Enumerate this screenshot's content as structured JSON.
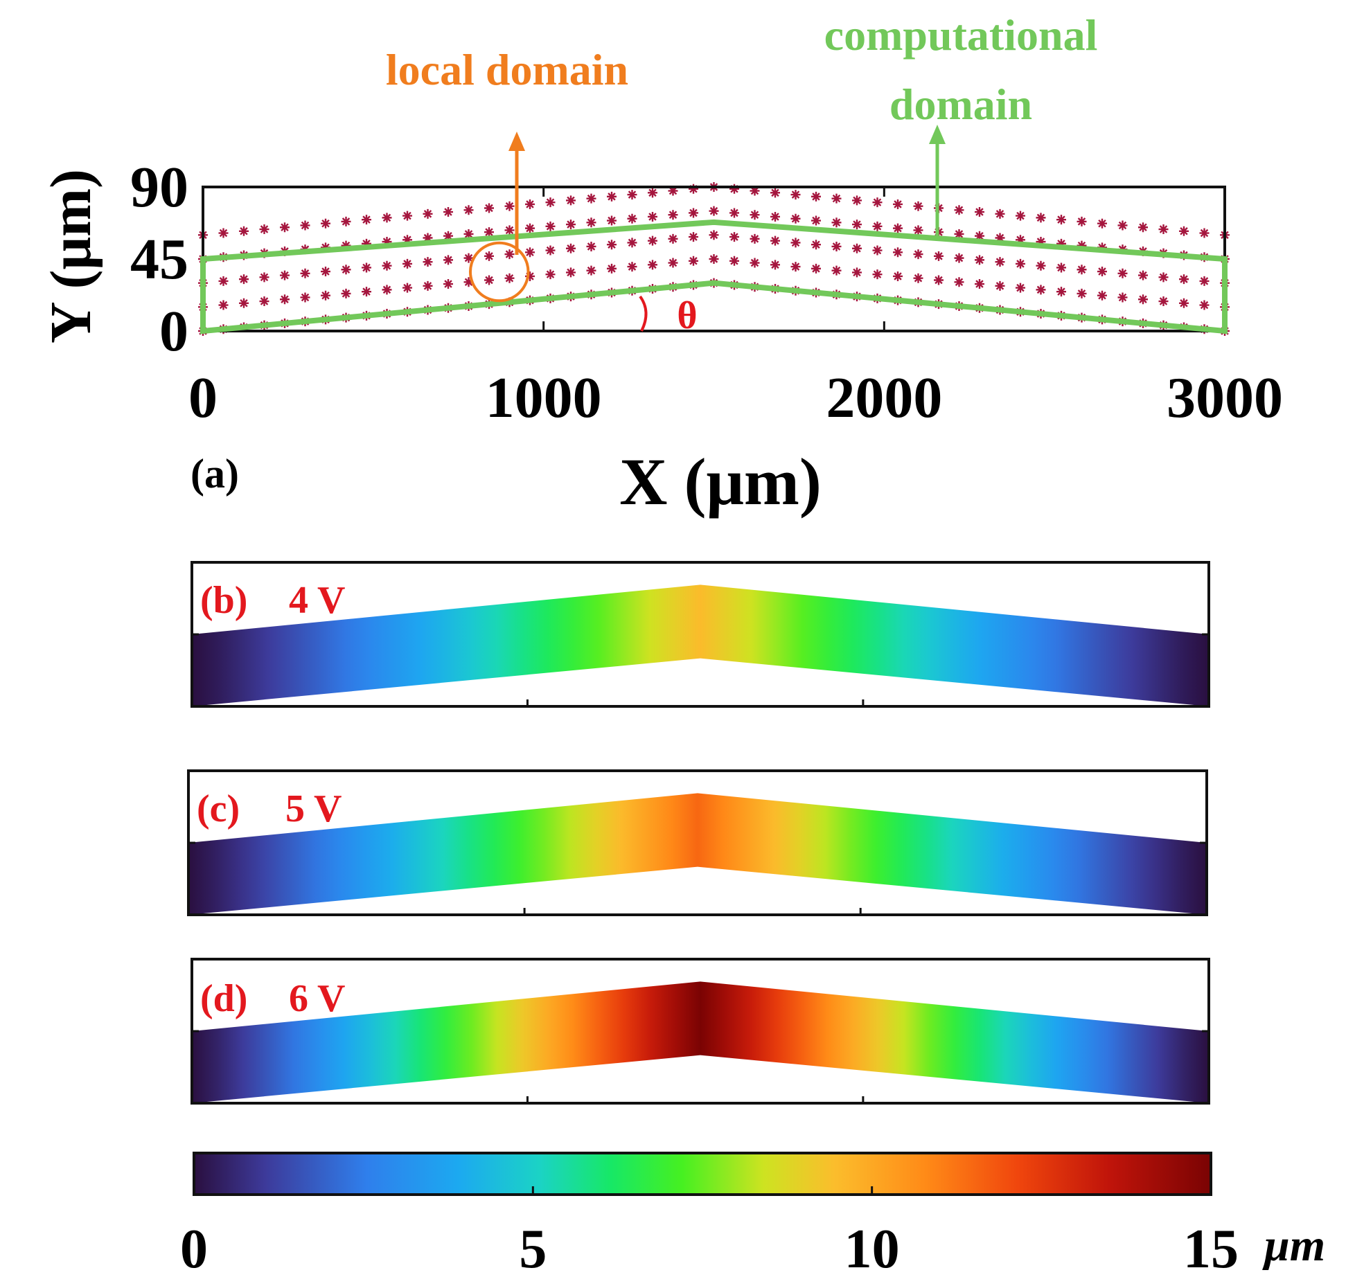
{
  "colors": {
    "accent_green": "#72c85a",
    "accent_orange": "#f07d1e",
    "label_red": "#e3181e",
    "star_color": "#a5163e",
    "axis_black": "#111111"
  },
  "chart_data": [
    {
      "panel": "(a)",
      "type": "scatter",
      "title": "",
      "xlabel": "X (μm)",
      "ylabel": "Y (μm)",
      "xlim": [
        0,
        3000
      ],
      "ylim": [
        0,
        90
      ],
      "xticks": [
        0,
        1000,
        2000,
        3000
      ],
      "yticks": [
        0,
        45,
        90
      ],
      "node_grid": {
        "x_start": 0,
        "x_end": 3000,
        "columns": 51,
        "rows_y_offset": [
          0,
          15,
          30,
          45,
          60
        ],
        "peak_x": 1500,
        "peak_rise": 30
      },
      "computational_domain": {
        "label": "computational domain",
        "label_lines": [
          "computational",
          "domain"
        ],
        "outline": [
          [
            0,
            0
          ],
          [
            1500,
            30
          ],
          [
            3000,
            0
          ],
          [
            3000,
            45
          ],
          [
            1500,
            68
          ],
          [
            0,
            45
          ]
        ]
      },
      "local_domain": {
        "label": "local domain",
        "center": [
          870,
          37
        ],
        "radius_x": 85
      },
      "angle_label": "θ",
      "panel_label": "(a)"
    },
    {
      "panel": "(b)",
      "type": "heatmap",
      "panel_label": "(b)",
      "voltage_label": "4 V",
      "xlim": [
        0,
        3000
      ],
      "peak_x": 1500,
      "max_deflection": 9.5,
      "unit": "μm"
    },
    {
      "panel": "(c)",
      "type": "heatmap",
      "panel_label": "(c)",
      "voltage_label": "5 V",
      "xlim": [
        0,
        3000
      ],
      "peak_x": 1500,
      "max_deflection": 11.5,
      "unit": "μm"
    },
    {
      "panel": "(d)",
      "type": "heatmap",
      "panel_label": "(d)",
      "voltage_label": "6 V",
      "xlim": [
        0,
        3000
      ],
      "peak_x": 1500,
      "max_deflection": 15,
      "unit": "μm"
    },
    {
      "panel": "colorbar",
      "type": "colorbar",
      "range": [
        0,
        15
      ],
      "ticks": [
        0,
        5,
        10,
        15
      ],
      "unit_label": "μm",
      "colormap": [
        [
          0.0,
          "#2a0f3f"
        ],
        [
          0.07,
          "#3d3a9a"
        ],
        [
          0.17,
          "#2f7fec"
        ],
        [
          0.26,
          "#1ca9f0"
        ],
        [
          0.34,
          "#1bd3c5"
        ],
        [
          0.41,
          "#17e866"
        ],
        [
          0.48,
          "#46f021"
        ],
        [
          0.56,
          "#cde321"
        ],
        [
          0.63,
          "#fbbd2c"
        ],
        [
          0.72,
          "#ff8a17"
        ],
        [
          0.81,
          "#f0460d"
        ],
        [
          0.9,
          "#c0140a"
        ],
        [
          1.0,
          "#7a0303"
        ]
      ]
    }
  ]
}
